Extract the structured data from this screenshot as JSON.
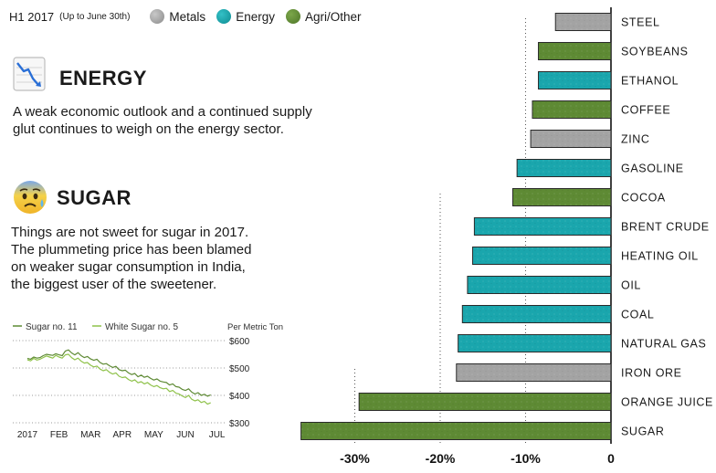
{
  "header": {
    "period": "H1 2017",
    "period_note": "(Up to June 30th)",
    "legend": [
      {
        "label": "Metals",
        "color": "#9e9e9e",
        "icon": "metals-dot-icon"
      },
      {
        "label": "Energy",
        "color": "#1aa6ad",
        "icon": "energy-dot-icon"
      },
      {
        "label": "Agri/Other",
        "color": "#5e8a34",
        "icon": "agri-dot-icon"
      }
    ]
  },
  "energy_section": {
    "icon": "chart-decreasing-icon",
    "title": "ENERGY",
    "body_lines": [
      "A weak economic outlook and a continued supply",
      "glut continues to weigh on the energy sector."
    ]
  },
  "sugar_section": {
    "icon": "anxious-face-with-sweat-icon",
    "title": "SUGAR",
    "body_lines": [
      "Things are not sweet for sugar in 2017.",
      "The plummeting price has been blamed",
      "on weaker sugar consumption in India,",
      "the biggest user of the sweetener."
    ]
  },
  "colors": {
    "Metals": "#a3a3a3",
    "Energy": "#1aa6ad",
    "Agri/Other": "#5e8a34"
  },
  "chart_data": [
    {
      "type": "bar",
      "orientation": "horizontal",
      "title": "",
      "xlabel": "",
      "ylabel": "",
      "categories": [
        "STEEL",
        "SOYBEANS",
        "ETHANOL",
        "COFFEE",
        "ZINC",
        "GASOLINE",
        "COCOA",
        "BRENT CRUDE",
        "HEATING OIL",
        "OIL",
        "COAL",
        "NATURAL GAS",
        "IRON ORE",
        "ORANGE JUICE",
        "SUGAR"
      ],
      "values": [
        -6.5,
        -8.5,
        -8.5,
        -9.2,
        -9.4,
        -11.0,
        -11.5,
        -16.0,
        -16.2,
        -16.8,
        -17.4,
        -17.9,
        -18.1,
        -29.5,
        -36.3
      ],
      "groups": [
        "Metals",
        "Agri/Other",
        "Energy",
        "Agri/Other",
        "Metals",
        "Energy",
        "Agri/Other",
        "Energy",
        "Energy",
        "Energy",
        "Energy",
        "Energy",
        "Metals",
        "Agri/Other",
        "Agri/Other"
      ],
      "xlim": [
        -37,
        0
      ],
      "ticks": [
        -30,
        -20,
        -10,
        0
      ],
      "tick_labels": [
        "-30%",
        "-20%",
        "-10%",
        "0"
      ],
      "grid": true,
      "legend": "top-left"
    },
    {
      "type": "line",
      "title": "",
      "ylabel": "Per Metric Ton",
      "x_tick_labels": [
        "2017",
        "FEB",
        "MAR",
        "APR",
        "MAY",
        "JUN",
        "JUL"
      ],
      "y_ticks": [
        300,
        400,
        500,
        600
      ],
      "y_tick_labels": [
        "$300",
        "$400",
        "$500",
        "$600"
      ],
      "ylim": [
        300,
        600
      ],
      "grid": true,
      "legend": "top-left",
      "series": [
        {
          "name": "Sugar no. 11",
          "color": "#5e8a34",
          "x": [
            0.0,
            0.1,
            0.2,
            0.3,
            0.4,
            0.5,
            0.6,
            0.7,
            0.8,
            0.9,
            1.0,
            1.1,
            1.2,
            1.3,
            1.4,
            1.5,
            1.6,
            1.7,
            1.8,
            1.9,
            2.0,
            2.1,
            2.2,
            2.3,
            2.4,
            2.5,
            2.6,
            2.7,
            2.8,
            2.9,
            3.0,
            3.1,
            3.2,
            3.3,
            3.4,
            3.5,
            3.6,
            3.7,
            3.8,
            3.9,
            4.0,
            4.1,
            4.2,
            4.3,
            4.4,
            4.5,
            4.6,
            4.7,
            4.8,
            4.9,
            5.0,
            5.1,
            5.2,
            5.3,
            5.4,
            5.5,
            5.6,
            5.7,
            5.8
          ],
          "y": [
            535,
            532,
            540,
            536,
            538,
            545,
            550,
            548,
            546,
            552,
            548,
            545,
            562,
            566,
            555,
            548,
            556,
            545,
            538,
            542,
            533,
            528,
            532,
            520,
            514,
            516,
            508,
            502,
            506,
            494,
            490,
            492,
            482,
            476,
            480,
            468,
            474,
            466,
            470,
            462,
            456,
            460,
            452,
            449,
            447,
            438,
            442,
            432,
            430,
            422,
            418,
            424,
            412,
            405,
            410,
            400,
            404,
            397,
            402
          ]
        },
        {
          "name": "White Sugar no. 5",
          "color": "#8fc24a",
          "x": [
            0.0,
            0.1,
            0.2,
            0.3,
            0.4,
            0.5,
            0.6,
            0.7,
            0.8,
            0.9,
            1.0,
            1.1,
            1.2,
            1.3,
            1.4,
            1.5,
            1.6,
            1.7,
            1.8,
            1.9,
            2.0,
            2.1,
            2.2,
            2.3,
            2.4,
            2.5,
            2.6,
            2.7,
            2.8,
            2.9,
            3.0,
            3.1,
            3.2,
            3.3,
            3.4,
            3.5,
            3.6,
            3.7,
            3.8,
            3.9,
            4.0,
            4.1,
            4.2,
            4.3,
            4.4,
            4.5,
            4.6,
            4.7,
            4.8,
            4.9,
            5.0,
            5.1,
            5.2,
            5.3,
            5.4,
            5.5,
            5.6,
            5.7,
            5.8
          ],
          "y": [
            530,
            526,
            535,
            529,
            532,
            538,
            544,
            540,
            536,
            546,
            540,
            536,
            548,
            550,
            538,
            530,
            536,
            525,
            518,
            520,
            510,
            504,
            507,
            496,
            490,
            494,
            484,
            478,
            482,
            470,
            465,
            467,
            458,
            452,
            457,
            446,
            450,
            442,
            447,
            438,
            432,
            436,
            428,
            424,
            426,
            414,
            418,
            408,
            405,
            398,
            392,
            400,
            386,
            380,
            384,
            374,
            378,
            368,
            373
          ]
        }
      ]
    }
  ]
}
